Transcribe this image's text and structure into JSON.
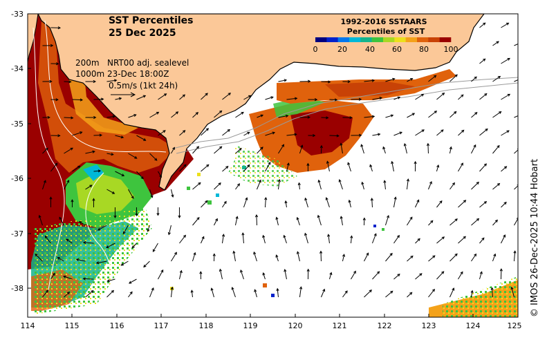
{
  "title": {
    "line1": "SST Percentiles",
    "line2": "25 Dec 2025"
  },
  "annotations": {
    "contour_200": "200m",
    "contour_1000": "1000m",
    "sealevel": "NRT00 adj. sealevel",
    "date": "23-Dec 18:00Z",
    "current_scale": "0.5m/s (1kt 24h)"
  },
  "legend": {
    "title1": "1992-2016 SSTAARS",
    "title2": "Percentiles of SST",
    "ticks": [
      "0",
      "20",
      "40",
      "60",
      "80",
      "100"
    ],
    "colors": [
      "#00007f",
      "#0022cc",
      "#0077ee",
      "#00b8d8",
      "#14b48c",
      "#3ec43e",
      "#a8d824",
      "#ece01c",
      "#f4a21a",
      "#e0620c",
      "#c84206",
      "#9a0000"
    ]
  },
  "axes": {
    "x_ticks": [
      "114",
      "115",
      "116",
      "117",
      "118",
      "119",
      "120",
      "121",
      "122",
      "123",
      "124",
      "125"
    ],
    "y_ticks": [
      "-33",
      "-34",
      "-35",
      "-36",
      "-37",
      "-38"
    ],
    "lon_range": [
      114,
      125
    ],
    "lat_range": [
      -33,
      -38.5
    ]
  },
  "credit": "© IMOS 26-Dec-2025 10:44 Hobart",
  "colors": {
    "land": "#fbc898",
    "ocean": "#ffffff",
    "contour_shelf": "#9a9a9a",
    "contour_deep": "#ffffff"
  }
}
